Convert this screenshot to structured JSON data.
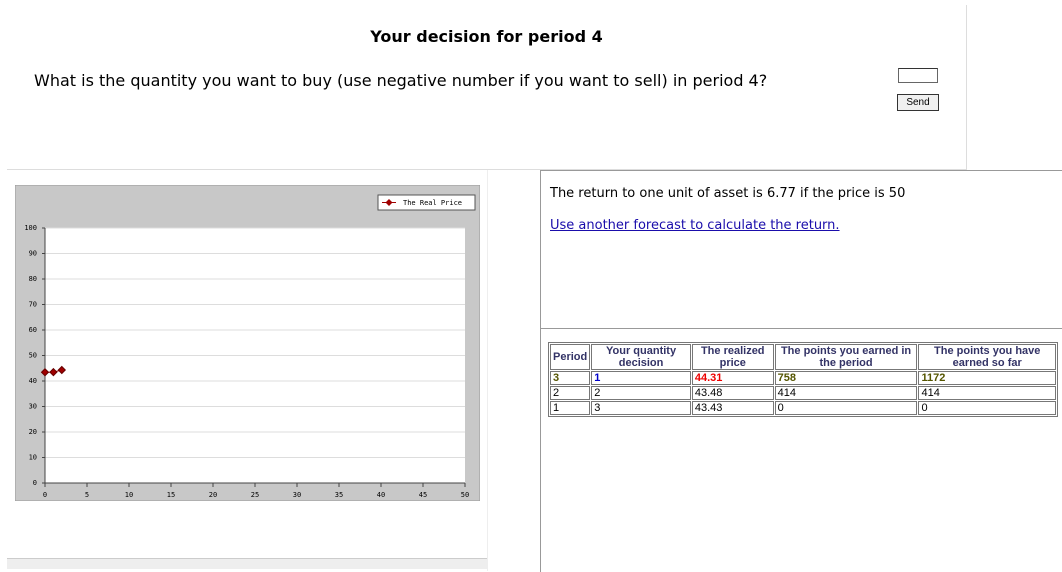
{
  "decision": {
    "title": "Your decision for period 4",
    "question": "What is the quantity you want to buy (use negative number if you want to sell) in period 4?",
    "button": "Send"
  },
  "chart_data": {
    "type": "line",
    "x": [
      0,
      1,
      2
    ],
    "series": [
      {
        "name": "The Real Price",
        "color": "#a00000",
        "values": [
          43.43,
          43.48,
          44.31
        ]
      }
    ],
    "xlim": [
      0,
      50
    ],
    "ylim": [
      0,
      100
    ],
    "xticks": [
      0,
      5,
      10,
      15,
      20,
      25,
      30,
      35,
      40,
      45,
      50
    ],
    "yticks": [
      0,
      10,
      20,
      30,
      40,
      50,
      60,
      70,
      80,
      90,
      100
    ],
    "grid": true,
    "legend": "top-right"
  },
  "info": {
    "return_text": "The return to one unit of asset is 6.77 if the price is 50",
    "link": "Use another forecast to calculate the return."
  },
  "table": {
    "headers": [
      "Period",
      "Your quantity decision",
      "The realized price",
      "The points you earned in the period",
      "The points you have earned so far"
    ],
    "rows": [
      [
        3,
        1,
        44.31,
        758,
        1172
      ],
      [
        2,
        2,
        43.48,
        414,
        414
      ],
      [
        1,
        3,
        43.43,
        0,
        0
      ]
    ]
  }
}
